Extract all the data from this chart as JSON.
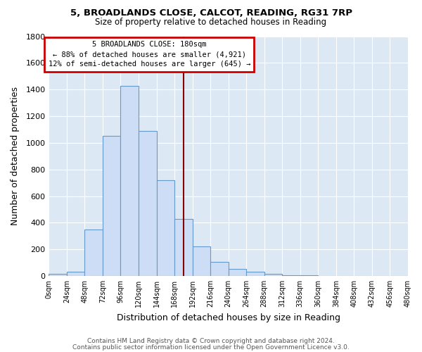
{
  "title": "5, BROADLANDS CLOSE, CALCOT, READING, RG31 7RP",
  "subtitle": "Size of property relative to detached houses in Reading",
  "xlabel": "Distribution of detached houses by size in Reading",
  "ylabel": "Number of detached properties",
  "bar_color": "#ccddf5",
  "bar_edge_color": "#6699cc",
  "bin_edges": [
    0,
    24,
    48,
    72,
    96,
    120,
    144,
    168,
    192,
    216,
    240,
    264,
    288,
    312,
    336,
    360,
    384,
    408,
    432,
    456,
    480
  ],
  "bar_heights": [
    15,
    30,
    350,
    1050,
    1430,
    1090,
    720,
    430,
    220,
    105,
    55,
    30,
    15,
    5,
    3,
    2,
    1,
    0,
    0,
    0
  ],
  "property_size": 180,
  "vline_color": "#8b0000",
  "annotation_box_facecolor": "#ffffff",
  "annotation_border_color": "#cc0000",
  "annotation_title": "5 BROADLANDS CLOSE: 180sqm",
  "annotation_line1": "← 88% of detached houses are smaller (4,921)",
  "annotation_line2": "12% of semi-detached houses are larger (645) →",
  "ylim": [
    0,
    1800
  ],
  "yticks": [
    0,
    200,
    400,
    600,
    800,
    1000,
    1200,
    1400,
    1600,
    1800
  ],
  "xtick_labels": [
    "0sqm",
    "24sqm",
    "48sqm",
    "72sqm",
    "96sqm",
    "120sqm",
    "144sqm",
    "168sqm",
    "192sqm",
    "216sqm",
    "240sqm",
    "264sqm",
    "288sqm",
    "312sqm",
    "336sqm",
    "360sqm",
    "384sqm",
    "408sqm",
    "432sqm",
    "456sqm",
    "480sqm"
  ],
  "footer_line1": "Contains HM Land Registry data © Crown copyright and database right 2024.",
  "footer_line2": "Contains public sector information licensed under the Open Government Licence v3.0.",
  "figure_bg_color": "#ffffff",
  "plot_bg_color": "#dde8f5"
}
